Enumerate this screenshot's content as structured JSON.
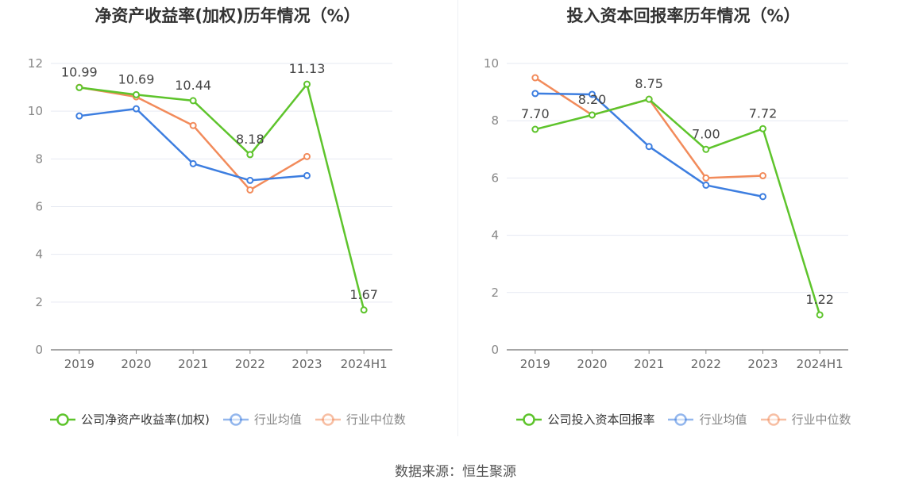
{
  "source": "数据来源：恒生聚源",
  "chart_data": [
    {
      "type": "line",
      "title": "净资产收益率(加权)历年情况（%）",
      "categories": [
        "2019",
        "2020",
        "2021",
        "2022",
        "2023",
        "2024H1"
      ],
      "ylim": [
        0,
        12
      ],
      "yticks": [
        0,
        2,
        4,
        6,
        8,
        10,
        12
      ],
      "grid": true,
      "legend_position": "bottom",
      "series": [
        {
          "name": "公司净资产收益率(加权)",
          "color": "#5ec42c",
          "values": [
            10.99,
            10.69,
            10.44,
            8.18,
            11.13,
            1.67
          ],
          "labels": [
            "10.99",
            "10.69",
            "10.44",
            "8.18",
            "11.13",
            "1.67"
          ]
        },
        {
          "name": "行业均值",
          "color": "#3d7ee0",
          "values": [
            9.8,
            10.1,
            7.8,
            7.1,
            7.3,
            null
          ]
        },
        {
          "name": "行业中位数",
          "color": "#f28b5b",
          "values": [
            11.0,
            10.6,
            9.4,
            6.7,
            8.1,
            null
          ]
        }
      ]
    },
    {
      "type": "line",
      "title": "投入资本回报率历年情况（%）",
      "categories": [
        "2019",
        "2020",
        "2021",
        "2022",
        "2023",
        "2024H1"
      ],
      "ylim": [
        0,
        10
      ],
      "yticks": [
        0,
        2,
        4,
        6,
        8,
        10
      ],
      "grid": true,
      "legend_position": "bottom",
      "series": [
        {
          "name": "公司投入资本回报率",
          "color": "#5ec42c",
          "values": [
            7.7,
            8.2,
            8.75,
            7.0,
            7.72,
            1.22
          ],
          "labels": [
            "7.70",
            "8.20",
            "8.75",
            "7.00",
            "7.72",
            "1.22"
          ]
        },
        {
          "name": "行业均值",
          "color": "#3d7ee0",
          "values": [
            8.95,
            8.92,
            7.1,
            5.75,
            5.35,
            null
          ]
        },
        {
          "name": "行业中位数",
          "color": "#f28b5b",
          "values": [
            9.5,
            8.2,
            8.75,
            6.0,
            6.08,
            null
          ]
        }
      ]
    }
  ]
}
